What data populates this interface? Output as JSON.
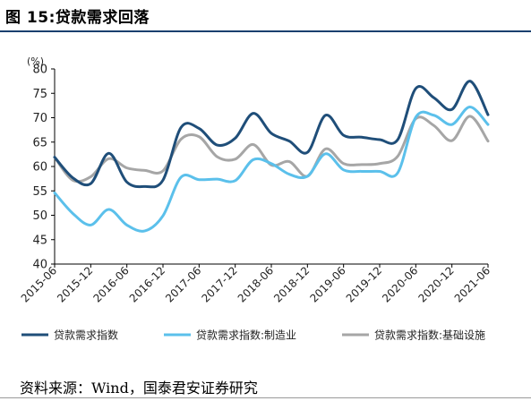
{
  "figure_title": "图 15:贷款需求回落",
  "source_note": "资料来源：Wind，国泰君安证券研究",
  "chart_data": {
    "type": "line",
    "unit_label": "(%)",
    "ylim": [
      40,
      80
    ],
    "yticks": [
      40,
      45,
      50,
      55,
      60,
      65,
      70,
      75,
      80
    ],
    "grid": false,
    "legend_position": "bottom",
    "x_tick_labels": [
      "2015-06",
      "2015-12",
      "2016-06",
      "2016-12",
      "2017-06",
      "2017-12",
      "2018-06",
      "2018-12",
      "2019-06",
      "2019-12",
      "2020-06",
      "2020-12",
      "2021-06"
    ],
    "x": [
      "2015-06",
      "2015-09",
      "2015-12",
      "2016-03",
      "2016-06",
      "2016-09",
      "2016-12",
      "2017-03",
      "2017-06",
      "2017-09",
      "2017-12",
      "2018-03",
      "2018-06",
      "2018-09",
      "2018-12",
      "2019-03",
      "2019-06",
      "2019-09",
      "2019-12",
      "2020-03",
      "2020-06",
      "2020-09",
      "2020-12",
      "2021-03",
      "2021-06"
    ],
    "series": [
      {
        "name": "贷款需求指数",
        "color": "#1f4e79",
        "values": [
          61.9,
          57.7,
          56.5,
          62.7,
          56.8,
          55.9,
          57.2,
          68.0,
          67.8,
          64.4,
          65.8,
          70.9,
          66.8,
          65.2,
          62.9,
          70.5,
          66.4,
          66.0,
          65.5,
          65.5,
          76.0,
          74.1,
          71.7,
          77.5,
          70.6
        ]
      },
      {
        "name": "贷款需求指数:制造业",
        "color": "#5bc0eb",
        "values": [
          54.6,
          50.4,
          48.0,
          51.2,
          48.0,
          46.8,
          49.9,
          57.8,
          57.3,
          57.4,
          57.1,
          61.4,
          60.6,
          58.4,
          58.0,
          62.6,
          59.3,
          59.0,
          59.0,
          58.7,
          70.1,
          70.5,
          68.6,
          72.2,
          68.6
        ]
      },
      {
        "name": "贷款需求指数:基础设施",
        "color": "#a6a6a6",
        "values": [
          61.9,
          57.2,
          57.9,
          61.6,
          59.7,
          59.2,
          59.1,
          65.6,
          66.1,
          62.0,
          61.5,
          64.5,
          60.3,
          61.0,
          58.0,
          63.6,
          60.6,
          60.4,
          60.6,
          62.1,
          69.8,
          68.4,
          65.3,
          70.3,
          65.2
        ]
      }
    ]
  }
}
